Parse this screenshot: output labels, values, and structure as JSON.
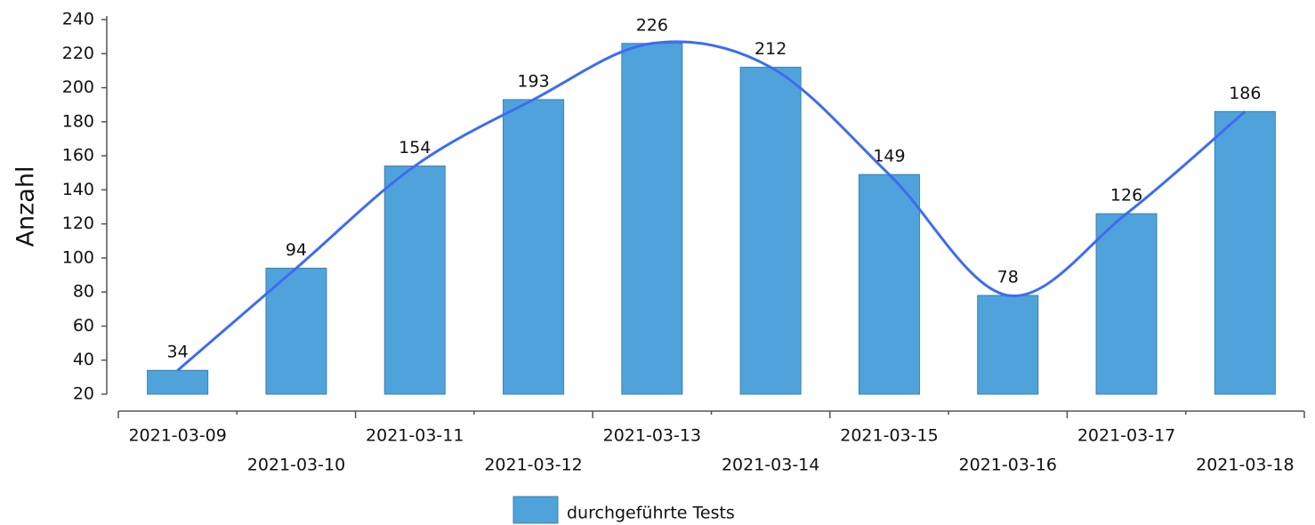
{
  "chart_data": {
    "type": "bar",
    "y_label": "Anzahl",
    "categories": [
      "2021-03-09",
      "2021-03-10",
      "2021-03-11",
      "2021-03-12",
      "2021-03-13",
      "2021-03-14",
      "2021-03-15",
      "2021-03-16",
      "2021-03-17",
      "2021-03-18"
    ],
    "series": [
      {
        "name": "durchgeführte Tests",
        "color": "#4fa3da",
        "values": [
          34,
          94,
          154,
          193,
          226,
          212,
          149,
          78,
          126,
          186
        ]
      }
    ],
    "trend_line": true,
    "trend_color": "#3d6cf2",
    "ylim": [
      20,
      240
    ],
    "yticks": [
      20,
      40,
      60,
      80,
      100,
      120,
      140,
      160,
      180,
      200,
      220,
      240
    ],
    "grid": false,
    "legend": "bottom"
  }
}
